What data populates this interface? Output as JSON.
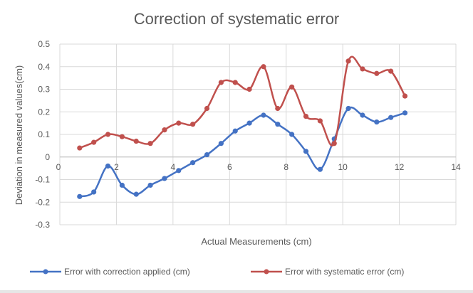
{
  "chart_data": {
    "type": "scatter",
    "title": "Correction of systematic error",
    "xlabel": "Actual Measurements (cm)",
    "ylabel": "Deviation in measured values(cm)",
    "xlim": [
      0,
      14
    ],
    "ylim": [
      -0.3,
      0.5
    ],
    "x_ticks": [
      0,
      2,
      4,
      6,
      8,
      10,
      12,
      14
    ],
    "y_ticks": [
      -0.3,
      -0.2,
      -0.1,
      0,
      0.1,
      0.2,
      0.3,
      0.4,
      0.5
    ],
    "x_tick_labels": [
      "0",
      "2",
      "4",
      "6",
      "8",
      "10",
      "12",
      "14"
    ],
    "y_tick_labels": [
      "-0.3",
      "-0.2",
      "-0.1",
      "0",
      "0.1",
      "0.2",
      "0.3",
      "0.4",
      "0.5"
    ],
    "grid": true,
    "smooth_lines": true,
    "legend_position": "bottom",
    "series": [
      {
        "name": "Error with correction applied (cm)",
        "color": "#4472C4",
        "points": [
          [
            0.7,
            -0.175
          ],
          [
            1.2,
            -0.155
          ],
          [
            1.7,
            -0.04
          ],
          [
            2.2,
            -0.125
          ],
          [
            2.7,
            -0.165
          ],
          [
            3.2,
            -0.125
          ],
          [
            3.7,
            -0.095
          ],
          [
            4.2,
            -0.06
          ],
          [
            4.7,
            -0.025
          ],
          [
            5.2,
            0.01
          ],
          [
            5.7,
            0.06
          ],
          [
            6.2,
            0.115
          ],
          [
            6.7,
            0.15
          ],
          [
            7.2,
            0.185
          ],
          [
            7.7,
            0.145
          ],
          [
            8.2,
            0.1
          ],
          [
            8.7,
            0.025
          ],
          [
            9.2,
            -0.055
          ],
          [
            9.7,
            0.08
          ],
          [
            10.2,
            0.215
          ],
          [
            10.7,
            0.185
          ],
          [
            11.2,
            0.155
          ],
          [
            11.7,
            0.175
          ],
          [
            12.2,
            0.195
          ]
        ]
      },
      {
        "name": "Error with systematic error (cm)",
        "color": "#C0504D",
        "points": [
          [
            0.7,
            0.04
          ],
          [
            1.2,
            0.065
          ],
          [
            1.7,
            0.1
          ],
          [
            2.2,
            0.09
          ],
          [
            2.7,
            0.07
          ],
          [
            3.2,
            0.06
          ],
          [
            3.7,
            0.12
          ],
          [
            4.2,
            0.15
          ],
          [
            4.7,
            0.145
          ],
          [
            5.2,
            0.215
          ],
          [
            5.7,
            0.33
          ],
          [
            6.2,
            0.33
          ],
          [
            6.7,
            0.3
          ],
          [
            7.2,
            0.4
          ],
          [
            7.7,
            0.215
          ],
          [
            8.2,
            0.31
          ],
          [
            8.7,
            0.18
          ],
          [
            9.2,
            0.16
          ],
          [
            9.7,
            0.06
          ],
          [
            10.2,
            0.425
          ],
          [
            10.7,
            0.39
          ],
          [
            11.2,
            0.37
          ],
          [
            11.7,
            0.38
          ],
          [
            12.2,
            0.27
          ]
        ]
      }
    ]
  }
}
